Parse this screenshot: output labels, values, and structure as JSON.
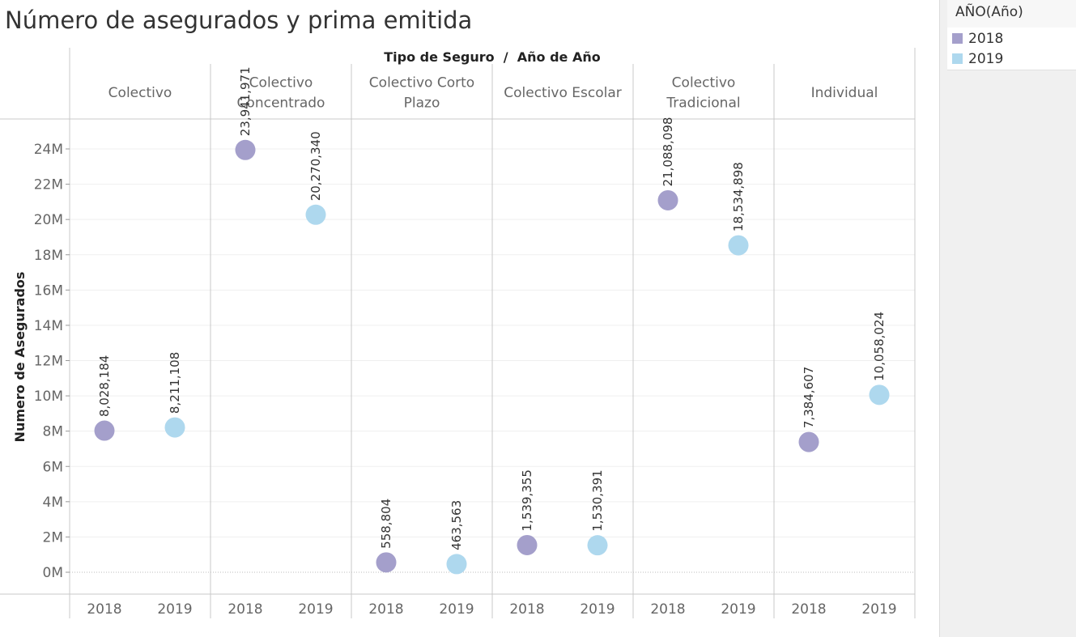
{
  "title": "Número de asegurados y prima emitida",
  "legend": {
    "title": "AÑO(Año)",
    "items": [
      {
        "label": "2018",
        "color": "#a49fcb"
      },
      {
        "label": "2019",
        "color": "#aed8ee"
      }
    ]
  },
  "chart_data": {
    "type": "scatter",
    "title": "Número de asegurados y prima emitida",
    "header_label": "Tipo de Seguro  /  Año de Año",
    "ylabel": "Numero de Asegurados",
    "ylim": [
      0,
      25000000
    ],
    "y_ticks": [
      {
        "value": 0,
        "label": "0M"
      },
      {
        "value": 2000000,
        "label": "2M"
      },
      {
        "value": 4000000,
        "label": "4M"
      },
      {
        "value": 6000000,
        "label": "6M"
      },
      {
        "value": 8000000,
        "label": "8M"
      },
      {
        "value": 10000000,
        "label": "10M"
      },
      {
        "value": 12000000,
        "label": "12M"
      },
      {
        "value": 14000000,
        "label": "14M"
      },
      {
        "value": 16000000,
        "label": "16M"
      },
      {
        "value": 18000000,
        "label": "18M"
      },
      {
        "value": 20000000,
        "label": "20M"
      },
      {
        "value": 22000000,
        "label": "22M"
      },
      {
        "value": 24000000,
        "label": "24M"
      }
    ],
    "grid": true,
    "legend_position": "top-right",
    "groups": [
      {
        "name": [
          "Colectivo"
        ],
        "points": [
          {
            "year": "2018",
            "value": 8028184,
            "label": "8,028,184"
          },
          {
            "year": "2019",
            "value": 8211108,
            "label": "8,211,108"
          }
        ]
      },
      {
        "name": [
          "Colectivo",
          "Concentrado"
        ],
        "points": [
          {
            "year": "2018",
            "value": 23941971,
            "label": "23,941,971"
          },
          {
            "year": "2019",
            "value": 20270340,
            "label": "20,270,340"
          }
        ]
      },
      {
        "name": [
          "Colectivo Corto",
          "Plazo"
        ],
        "points": [
          {
            "year": "2018",
            "value": 558804,
            "label": "558,804"
          },
          {
            "year": "2019",
            "value": 463563,
            "label": "463,563"
          }
        ]
      },
      {
        "name": [
          "Colectivo Escolar"
        ],
        "points": [
          {
            "year": "2018",
            "value": 1539355,
            "label": "1,539,355"
          },
          {
            "year": "2019",
            "value": 1530391,
            "label": "1,530,391"
          }
        ]
      },
      {
        "name": [
          "Colectivo",
          "Tradicional"
        ],
        "points": [
          {
            "year": "2018",
            "value": 21088098,
            "label": "21,088,098"
          },
          {
            "year": "2019",
            "value": 18534898,
            "label": "18,534,898"
          }
        ]
      },
      {
        "name": [
          "Individual"
        ],
        "points": [
          {
            "year": "2018",
            "value": 7384607,
            "label": "7,384,607"
          },
          {
            "year": "2019",
            "value": 10058024,
            "label": "10,058,024"
          }
        ]
      }
    ]
  }
}
